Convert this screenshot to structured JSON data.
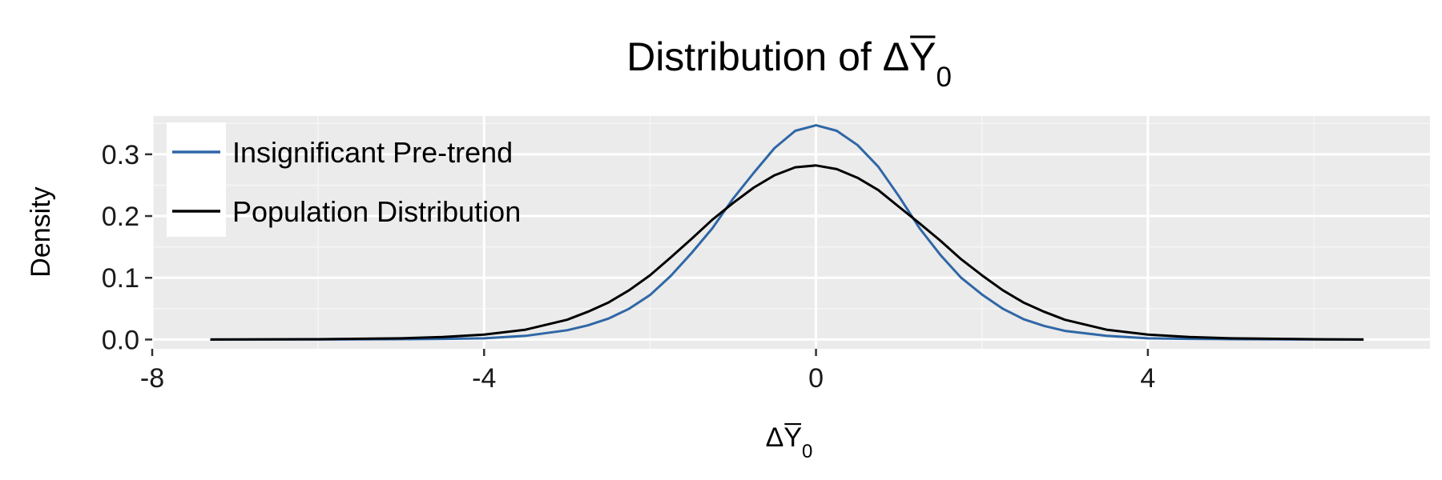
{
  "chart_data": {
    "type": "line",
    "title": {
      "prefix": "Distribution of ",
      "symbol": "ΔY",
      "subscript": "0",
      "overline": true
    },
    "xlabel": {
      "symbol": "ΔY",
      "subscript": "0",
      "overline": true
    },
    "ylabel": "Density",
    "xlim": [
      -8,
      7.4
    ],
    "ylim": [
      -0.015,
      0.362
    ],
    "x_ticks": [
      -8,
      -4,
      0,
      4
    ],
    "x_tick_labels": [
      "-8",
      "-4",
      "0",
      "4"
    ],
    "y_ticks": [
      0.0,
      0.1,
      0.2,
      0.3
    ],
    "y_tick_labels": [
      "0.0",
      "0.1",
      "0.2",
      "0.3"
    ],
    "grid": true,
    "legend_position": "top-left",
    "series": [
      {
        "name": "Insignificant Pre-trend",
        "color": "#2f67a6",
        "x": [
          -7.3,
          -6,
          -5,
          -4.5,
          -4,
          -3.5,
          -3,
          -2.75,
          -2.5,
          -2.25,
          -2,
          -1.75,
          -1.5,
          -1.25,
          -1,
          -0.75,
          -0.5,
          -0.25,
          0,
          0.25,
          0.5,
          0.75,
          1,
          1.25,
          1.5,
          1.75,
          2,
          2.25,
          2.5,
          2.75,
          3,
          3.5,
          4,
          4.5,
          5,
          6,
          6.6
        ],
        "y": [
          0.0,
          0.0,
          0.0005,
          0.001,
          0.002,
          0.006,
          0.015,
          0.023,
          0.034,
          0.05,
          0.072,
          0.103,
          0.14,
          0.18,
          0.228,
          0.27,
          0.31,
          0.338,
          0.347,
          0.338,
          0.315,
          0.28,
          0.232,
          0.18,
          0.137,
          0.1,
          0.073,
          0.05,
          0.033,
          0.022,
          0.014,
          0.006,
          0.002,
          0.001,
          0.0005,
          0.0,
          0.0
        ]
      },
      {
        "name": "Population Distribution",
        "color": "#000000",
        "x": [
          -7.3,
          -6,
          -5,
          -4.5,
          -4,
          -3.5,
          -3,
          -2.75,
          -2.5,
          -2.25,
          -2,
          -1.75,
          -1.5,
          -1.25,
          -1,
          -0.75,
          -0.5,
          -0.25,
          0,
          0.25,
          0.5,
          0.75,
          1,
          1.25,
          1.5,
          1.75,
          2,
          2.25,
          2.5,
          2.75,
          3,
          3.5,
          4,
          4.5,
          5,
          6,
          6.6
        ],
        "y": [
          0.0,
          0.0005,
          0.002,
          0.004,
          0.008,
          0.016,
          0.032,
          0.045,
          0.06,
          0.08,
          0.104,
          0.133,
          0.163,
          0.194,
          0.221,
          0.246,
          0.266,
          0.279,
          0.282,
          0.276,
          0.262,
          0.242,
          0.215,
          0.188,
          0.16,
          0.13,
          0.104,
          0.08,
          0.06,
          0.045,
          0.032,
          0.016,
          0.008,
          0.004,
          0.002,
          0.0005,
          0.0
        ]
      }
    ]
  }
}
